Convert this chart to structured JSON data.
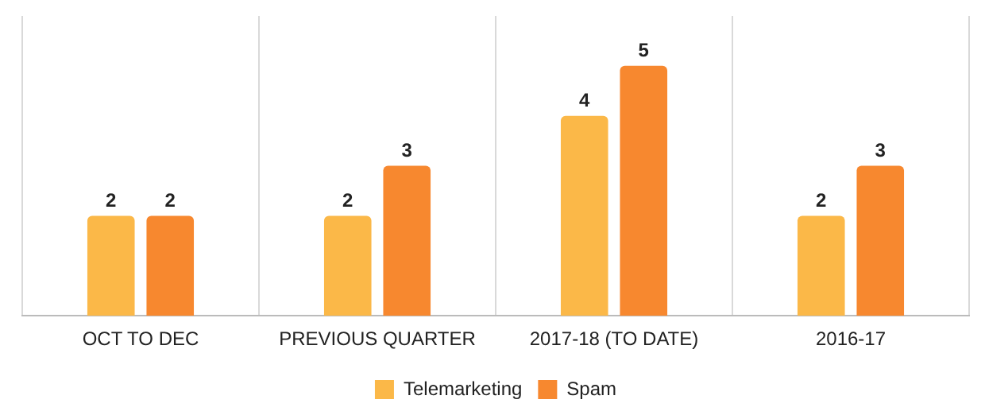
{
  "chart_data": {
    "type": "bar",
    "categories": [
      "OCT TO DEC",
      "PREVIOUS QUARTER",
      "2017-18 (TO DATE)",
      "2016-17"
    ],
    "series": [
      {
        "name": "Telemarketing",
        "color": "#fbb848",
        "values": [
          2,
          2,
          4,
          2
        ]
      },
      {
        "name": "Spam",
        "color": "#f7882f",
        "values": [
          2,
          3,
          5,
          3
        ]
      }
    ],
    "ylim": [
      0,
      6
    ],
    "tick_labels": "x",
    "grid": "x",
    "legend": "bottom",
    "data_labels": true
  }
}
